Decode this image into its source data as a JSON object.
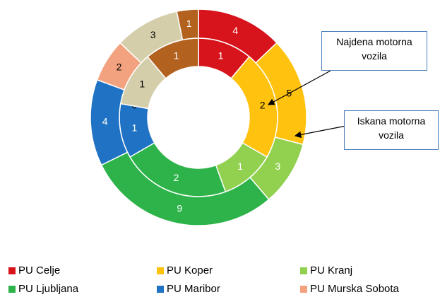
{
  "chart_data": {
    "type": "doughnut",
    "categories": [
      "PU Celje",
      "PU Koper",
      "PU Kranj",
      "PU Ljubljana",
      "PU Maribor",
      "PU Murska Sobota",
      null,
      null
    ],
    "colors": [
      "#d7141c",
      "#ffc20e",
      "#92d050",
      "#2db34a",
      "#1f72c4",
      "#f3a27f",
      "#d5ceaa",
      "#b2611f"
    ],
    "series": [
      {
        "name": "Najdena motorna vozila",
        "values": [
          1,
          2,
          1,
          2,
          1,
          0,
          1,
          1
        ]
      },
      {
        "name": "Iskana motorna vozila",
        "values": [
          4,
          5,
          3,
          9,
          4,
          2,
          3,
          1
        ]
      }
    ],
    "legend": "bottom"
  }
}
